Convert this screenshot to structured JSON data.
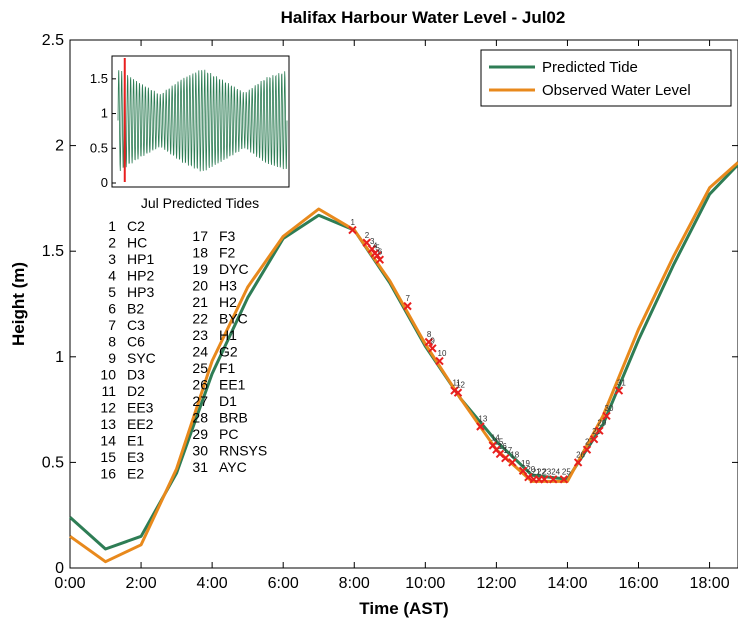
{
  "chart_data": {
    "type": "line",
    "title": "Halifax Harbour Water Level - Jul02",
    "xlabel": "Time (AST)",
    "ylabel": "Height (m)",
    "xlim": [
      0,
      18.8
    ],
    "ylim": [
      0,
      2.5
    ],
    "xticks": [
      0,
      2,
      4,
      6,
      8,
      10,
      12,
      14,
      16,
      18
    ],
    "xtick_labels": [
      "0:00",
      "2:00",
      "4:00",
      "6:00",
      "8:00",
      "10:00",
      "12:00",
      "14:00",
      "16:00",
      "18:00"
    ],
    "yticks": [
      0,
      0.5,
      1,
      1.5,
      2,
      2.5
    ],
    "ytick_labels": [
      "0",
      "0.5",
      "1",
      "1.5",
      "2",
      "2.5"
    ],
    "grid": false,
    "legend_position": "top-right",
    "series": [
      {
        "name": "Predicted Tide",
        "color": "#2e7d55",
        "x": [
          0,
          1,
          2,
          3,
          4,
          5,
          6,
          7,
          8,
          9,
          10,
          11,
          12,
          13,
          14,
          15,
          16,
          17,
          18,
          18.8
        ],
        "y": [
          0.24,
          0.09,
          0.15,
          0.45,
          0.92,
          1.28,
          1.56,
          1.67,
          1.6,
          1.35,
          1.05,
          0.8,
          0.6,
          0.44,
          0.42,
          0.68,
          1.08,
          1.44,
          1.77,
          1.91
        ]
      },
      {
        "name": "Observed Water Level",
        "color": "#e8891c",
        "x": [
          0,
          1,
          2,
          3,
          4,
          5,
          6,
          7,
          8,
          9,
          10,
          11,
          12,
          13,
          14,
          15,
          16,
          17,
          18,
          18.8
        ],
        "y": [
          0.15,
          0.03,
          0.11,
          0.47,
          0.98,
          1.33,
          1.57,
          1.7,
          1.6,
          1.36,
          1.06,
          0.8,
          0.56,
          0.41,
          0.41,
          0.72,
          1.13,
          1.48,
          1.8,
          1.92
        ]
      }
    ],
    "observations": {
      "color": "#e81f1f",
      "points": [
        {
          "label": "1",
          "x": 7.95,
          "y": 1.6
        },
        {
          "label": "2",
          "x": 8.35,
          "y": 1.54
        },
        {
          "label": "3",
          "x": 8.5,
          "y": 1.51
        },
        {
          "label": "4",
          "x": 8.58,
          "y": 1.49
        },
        {
          "label": "5",
          "x": 8.65,
          "y": 1.48
        },
        {
          "label": "6",
          "x": 8.72,
          "y": 1.46
        },
        {
          "label": "7",
          "x": 9.5,
          "y": 1.24
        },
        {
          "label": "8",
          "x": 10.1,
          "y": 1.07
        },
        {
          "label": "9",
          "x": 10.2,
          "y": 1.04
        },
        {
          "label": "10",
          "x": 10.4,
          "y": 0.98
        },
        {
          "label": "11",
          "x": 10.82,
          "y": 0.84
        },
        {
          "label": "12",
          "x": 10.92,
          "y": 0.83
        },
        {
          "label": "13",
          "x": 11.55,
          "y": 0.67
        },
        {
          "label": "14",
          "x": 11.9,
          "y": 0.58
        },
        {
          "label": "15",
          "x": 12.0,
          "y": 0.56
        },
        {
          "label": "16",
          "x": 12.1,
          "y": 0.54
        },
        {
          "label": "17",
          "x": 12.25,
          "y": 0.52
        },
        {
          "label": "18",
          "x": 12.45,
          "y": 0.5
        },
        {
          "label": "19",
          "x": 12.75,
          "y": 0.46
        },
        {
          "label": "20",
          "x": 12.9,
          "y": 0.43
        },
        {
          "label": "21",
          "x": 13.05,
          "y": 0.42
        },
        {
          "label": "22",
          "x": 13.2,
          "y": 0.42
        },
        {
          "label": "23",
          "x": 13.35,
          "y": 0.42
        },
        {
          "label": "24",
          "x": 13.6,
          "y": 0.42
        },
        {
          "label": "25",
          "x": 13.9,
          "y": 0.42
        },
        {
          "label": "26",
          "x": 14.3,
          "y": 0.5
        },
        {
          "label": "27",
          "x": 14.55,
          "y": 0.56
        },
        {
          "label": "28",
          "x": 14.75,
          "y": 0.61
        },
        {
          "label": "29",
          "x": 14.9,
          "y": 0.65
        },
        {
          "label": "30",
          "x": 15.1,
          "y": 0.72
        },
        {
          "label": "31",
          "x": 15.45,
          "y": 0.84
        }
      ]
    },
    "site_key": {
      "column1": [
        {
          "num": "1",
          "name": "C2"
        },
        {
          "num": "2",
          "name": "HC"
        },
        {
          "num": "3",
          "name": "HP1"
        },
        {
          "num": "4",
          "name": "HP2"
        },
        {
          "num": "5",
          "name": "HP3"
        },
        {
          "num": "6",
          "name": "B2"
        },
        {
          "num": "7",
          "name": "C3"
        },
        {
          "num": "8",
          "name": "C6"
        },
        {
          "num": "9",
          "name": "SYC"
        },
        {
          "num": "10",
          "name": "D3"
        },
        {
          "num": "11",
          "name": "D2"
        },
        {
          "num": "12",
          "name": "EE3"
        },
        {
          "num": "13",
          "name": "EE2"
        },
        {
          "num": "14",
          "name": "E1"
        },
        {
          "num": "15",
          "name": "E3"
        },
        {
          "num": "16",
          "name": "E2"
        }
      ],
      "column2": [
        {
          "num": "17",
          "name": "F3"
        },
        {
          "num": "18",
          "name": "F2"
        },
        {
          "num": "19",
          "name": "DYC"
        },
        {
          "num": "20",
          "name": "H3"
        },
        {
          "num": "21",
          "name": "H2"
        },
        {
          "num": "22",
          "name": "BYC"
        },
        {
          "num": "23",
          "name": "H1"
        },
        {
          "num": "24",
          "name": "G2"
        },
        {
          "num": "25",
          "name": "F1"
        },
        {
          "num": "26",
          "name": "EE1"
        },
        {
          "num": "27",
          "name": "D1"
        },
        {
          "num": "28",
          "name": "BRB"
        },
        {
          "num": "29",
          "name": "PC"
        },
        {
          "num": "30",
          "name": "RNSYS"
        },
        {
          "num": "31",
          "name": "AYC"
        }
      ]
    },
    "inset": {
      "title": "Jul Predicted Tides",
      "yticks": [
        0,
        0.5,
        1,
        1.5
      ],
      "ytick_labels": [
        "0",
        "0.5",
        "1",
        "1.5"
      ],
      "ylim": [
        0,
        1.8
      ],
      "series_color": "#2e7d55",
      "marker_color": "#e81f1f",
      "marker_day_fraction": 0.04,
      "cycles": 57,
      "amplitude_envelope": [
        0.75,
        0.55,
        0.38,
        0.6,
        0.75,
        0.58,
        0.4,
        0.62,
        0.72
      ]
    }
  }
}
